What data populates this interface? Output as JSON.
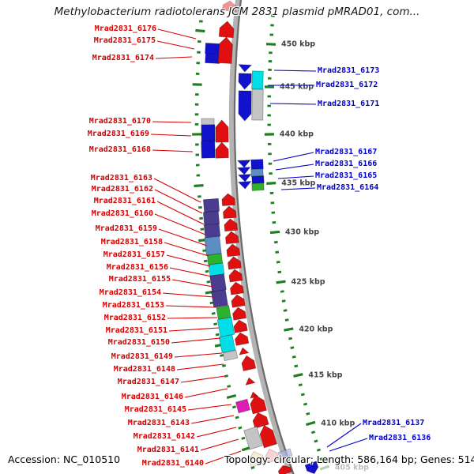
{
  "header": {
    "title": "Methylobacterium radiotolerans JCM 2831 plasmid pMRAD01, com..."
  },
  "footer": {
    "accession": "Accession: NC_010510",
    "topology": "Topology: circular; Length: 586,164 bp; Genes: 514"
  },
  "scale_labels": [
    "450 kbp",
    "445 kbp",
    "440 kbp",
    "435 kbp",
    "430 kbp",
    "425 kbp",
    "420 kbp",
    "415 kbp",
    "410 kbp",
    "405 kbp"
  ],
  "left_gene_labels": [
    "Mrad2831_6176",
    "Mrad2831_6175",
    "Mrad2831_6174",
    "Mrad2831_6170",
    "Mrad2831_6169",
    "Mrad2831_6168",
    "Mrad2831_6163",
    "Mrad2831_6162",
    "Mrad2831_6161",
    "Mrad2831_6160",
    "Mrad2831_6159",
    "Mrad2831_6158",
    "Mrad2831_6157",
    "Mrad2831_6156",
    "Mrad2831_6155",
    "Mrad2831_6154",
    "Mrad2831_6153",
    "Mrad2831_6152",
    "Mrad2831_6151",
    "Mrad2831_6150",
    "Mrad2831_6149",
    "Mrad2831_6148",
    "Mrad2831_6147",
    "Mrad2831_6146",
    "Mrad2831_6145",
    "Mrad2831_6143",
    "Mrad2831_6142",
    "Mrad2831_6141",
    "Mrad2831_6140"
  ],
  "right_gene_labels": [
    "Mrad2831_6173",
    "Mrad2831_6172",
    "Mrad2831_6171",
    "Mrad2831_6167",
    "Mrad2831_6166",
    "Mrad2831_6165",
    "Mrad2831_6164",
    "Mrad2831_6137",
    "Mrad2831_6136"
  ],
  "palette": {
    "red": "#e01010",
    "blue": "#1212cc",
    "cyan": "#00dfe8",
    "gray": "#c4c4c4",
    "purple": "#4a3c8f",
    "steel": "#5b8ec2",
    "green": "#2eb22e",
    "magenta": "#dd1cb4",
    "beige": "#f2ddb5",
    "fadedred": "#f2b6b6",
    "fadedblue": "#b0b4e8",
    "track": "#b3b3b3",
    "track_edge": "#6b6b6b",
    "tick": "#1e7f1e",
    "label_red": "#d60000",
    "label_blue": "#0000cd",
    "scale_text": "#454545"
  }
}
